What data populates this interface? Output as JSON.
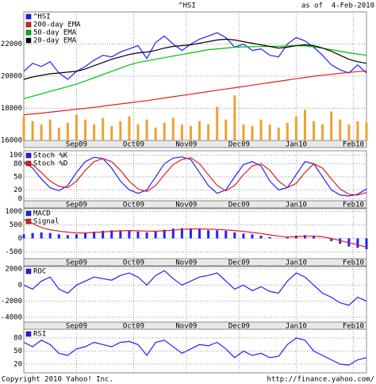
{
  "header": {
    "title": "^HSI",
    "as_of": "as of  4-Feb-2010"
  },
  "footer": {
    "copyright": "Copyright 2010 Yahoo! Inc.",
    "url": "http://finance.yahoo.com/"
  },
  "chart_data": [
    {
      "type": "line",
      "xlim": [
        0,
        39
      ],
      "ylim": [
        16000,
        24000
      ],
      "yticks": [
        16000,
        18000,
        20000,
        22000
      ],
      "xticks": [
        {
          "value": 6,
          "label": "Sep09"
        },
        {
          "value": 12.5,
          "label": "Oct09"
        },
        {
          "value": 18.5,
          "label": "Nov09"
        },
        {
          "value": 24.5,
          "label": "Dec09"
        },
        {
          "value": 31,
          "label": "Jan10"
        },
        {
          "value": 37.5,
          "label": "Feb10"
        }
      ],
      "grid": true,
      "series": [
        {
          "name": "^HSI",
          "color": "#2020ff",
          "values": [
            20300,
            20800,
            20600,
            20900,
            20200,
            19800,
            20300,
            20600,
            21000,
            21300,
            21200,
            21500,
            21700,
            21900,
            21100,
            22100,
            22500,
            22000,
            21600,
            22000,
            22300,
            22500,
            22700,
            22400,
            21800,
            22000,
            21600,
            21700,
            21300,
            21200,
            22000,
            22400,
            22200,
            21800,
            21300,
            20700,
            20400,
            20200,
            20700,
            20200
          ]
        },
        {
          "name": "200-day EMA",
          "color": "#e02020",
          "values": [
            17600,
            17650,
            17700,
            17760,
            17820,
            17880,
            17940,
            18000,
            18060,
            18130,
            18200,
            18270,
            18340,
            18410,
            18480,
            18560,
            18640,
            18720,
            18800,
            18880,
            18960,
            19040,
            19120,
            19200,
            19280,
            19360,
            19440,
            19520,
            19600,
            19680,
            19760,
            19840,
            19920,
            20000,
            20060,
            20120,
            20180,
            20230,
            20280,
            20320
          ]
        },
        {
          "name": "50-day EMA",
          "color": "#00c000",
          "values": [
            18600,
            18750,
            18900,
            19050,
            19200,
            19350,
            19500,
            19700,
            19900,
            20100,
            20300,
            20500,
            20700,
            20850,
            20950,
            21050,
            21150,
            21250,
            21350,
            21450,
            21550,
            21650,
            21700,
            21750,
            21800,
            21820,
            21830,
            21840,
            21850,
            21860,
            21880,
            21900,
            21880,
            21820,
            21740,
            21650,
            21550,
            21450,
            21380,
            21300
          ]
        },
        {
          "name": "20-day EMA",
          "color": "#000000",
          "values": [
            19800,
            19950,
            20050,
            20150,
            20200,
            20250,
            20300,
            20450,
            20650,
            20850,
            21050,
            21200,
            21350,
            21450,
            21500,
            21600,
            21750,
            21850,
            21900,
            21950,
            22050,
            22150,
            22250,
            22300,
            22250,
            22150,
            22050,
            21950,
            21850,
            21750,
            21800,
            21900,
            21950,
            21900,
            21750,
            21550,
            21300,
            21050,
            20900,
            20800
          ]
        },
        {
          "type": "bar",
          "color": "#f0a030",
          "values": [
            17500,
            17200,
            17000,
            17300,
            16800,
            17100,
            17600,
            17300,
            17000,
            17400,
            16900,
            17200,
            17500,
            17000,
            17300,
            16800,
            17100,
            17400,
            17000,
            16900,
            17200,
            17000,
            18100,
            17300,
            18800,
            17000,
            16900,
            17300,
            17000,
            16800,
            17100,
            17500,
            17900,
            17200,
            17000,
            17800,
            17300,
            17000,
            17200,
            17100
          ]
        }
      ]
    },
    {
      "type": "line",
      "xlim": [
        0,
        39
      ],
      "ylim": [
        -5,
        110
      ],
      "yticks": [
        0,
        20,
        50,
        80,
        100
      ],
      "xticks": [
        {
          "value": 6,
          "label": "Sep09"
        },
        {
          "value": 12.5,
          "label": "Oct09"
        },
        {
          "value": 18.5,
          "label": "Nov09"
        },
        {
          "value": 24.5,
          "label": "Dec09"
        },
        {
          "value": 31,
          "label": "Jan10"
        },
        {
          "value": 37.5,
          "label": "Feb10"
        }
      ],
      "grid": true,
      "series": [
        {
          "name": "Stoch %K",
          "color": "#2020ff",
          "values": [
            85,
            70,
            45,
            25,
            18,
            30,
            60,
            85,
            95,
            92,
            70,
            40,
            20,
            12,
            20,
            50,
            80,
            93,
            96,
            90,
            60,
            30,
            12,
            20,
            50,
            78,
            85,
            75,
            40,
            20,
            25,
            55,
            85,
            80,
            50,
            20,
            8,
            6,
            10,
            22
          ]
        },
        {
          "name": "Stoch %D",
          "color": "#e02020",
          "values": [
            80,
            78,
            60,
            40,
            28,
            25,
            40,
            65,
            85,
            92,
            85,
            65,
            40,
            22,
            16,
            30,
            55,
            78,
            90,
            94,
            80,
            55,
            30,
            18,
            30,
            55,
            75,
            80,
            65,
            40,
            25,
            35,
            60,
            80,
            70,
            45,
            22,
            10,
            8,
            14
          ]
        }
      ]
    },
    {
      "type": "line",
      "xlim": [
        0,
        39
      ],
      "ylim": [
        -750,
        1100
      ],
      "yticks": [
        -500,
        0,
        500,
        1000
      ],
      "xticks": [
        {
          "value": 6,
          "label": "Sep09"
        },
        {
          "value": 12.5,
          "label": "Oct09"
        },
        {
          "value": 18.5,
          "label": "Nov09"
        },
        {
          "value": 24.5,
          "label": "Dec09"
        },
        {
          "value": 31,
          "label": "Jan10"
        },
        {
          "value": 37.5,
          "label": "Feb10"
        }
      ],
      "grid": true,
      "series": [
        {
          "name": "MACD",
          "type": "bar",
          "color": "#2020ff",
          "values": [
            150,
            200,
            220,
            200,
            150,
            120,
            150,
            200,
            250,
            280,
            300,
            300,
            280,
            250,
            220,
            260,
            320,
            360,
            380,
            370,
            340,
            300,
            300,
            280,
            220,
            180,
            150,
            100,
            50,
            0,
            50,
            100,
            120,
            80,
            0,
            -100,
            -200,
            -300,
            -350,
            -400
          ]
        },
        {
          "name": "Signal",
          "color": "#e02020",
          "values": [
            700,
            550,
            400,
            320,
            270,
            230,
            200,
            200,
            220,
            240,
            260,
            280,
            290,
            280,
            270,
            265,
            280,
            300,
            330,
            350,
            350,
            340,
            330,
            310,
            290,
            260,
            220,
            180,
            130,
            80,
            50,
            60,
            80,
            85,
            60,
            0,
            -80,
            -160,
            -240,
            -320
          ]
        }
      ]
    },
    {
      "type": "line",
      "xlim": [
        0,
        39
      ],
      "ylim": [
        -4600,
        2300
      ],
      "yticks": [
        -4000,
        -2000,
        0,
        2000
      ],
      "xticks": [
        {
          "value": 6,
          "label": "Sep09"
        },
        {
          "value": 12.5,
          "label": "Oct09"
        },
        {
          "value": 18.5,
          "label": "Nov09"
        },
        {
          "value": 24.5,
          "label": "Dec09"
        },
        {
          "value": 31,
          "label": "Jan10"
        },
        {
          "value": 37.5,
          "label": "Feb10"
        }
      ],
      "grid": true,
      "series": [
        {
          "name": "ROC",
          "color": "#2020ff",
          "values": [
            0,
            -500,
            500,
            1000,
            -500,
            -1000,
            0,
            500,
            1000,
            800,
            600,
            1200,
            1500,
            1000,
            0,
            1200,
            1800,
            800,
            0,
            500,
            1000,
            1200,
            1500,
            500,
            -500,
            0,
            -700,
            -200,
            -800,
            -1000,
            500,
            1500,
            1000,
            0,
            -1000,
            -1500,
            -2200,
            -2500,
            -1500,
            -2000
          ]
        }
      ]
    },
    {
      "type": "line",
      "xlim": [
        0,
        39
      ],
      "ylim": [
        0,
        100
      ],
      "yticks": [
        20,
        50,
        80
      ],
      "xgrid": [
        6,
        12.5,
        18.5,
        24.5,
        31,
        37.5
      ],
      "grid": true,
      "series": [
        {
          "name": "RSI",
          "color": "#2020ff",
          "values": [
            70,
            60,
            75,
            65,
            45,
            40,
            55,
            60,
            70,
            65,
            60,
            70,
            72,
            65,
            40,
            70,
            75,
            60,
            45,
            55,
            65,
            62,
            70,
            55,
            35,
            50,
            40,
            45,
            35,
            38,
            65,
            80,
            75,
            50,
            40,
            30,
            20,
            18,
            30,
            35
          ]
        }
      ]
    }
  ]
}
